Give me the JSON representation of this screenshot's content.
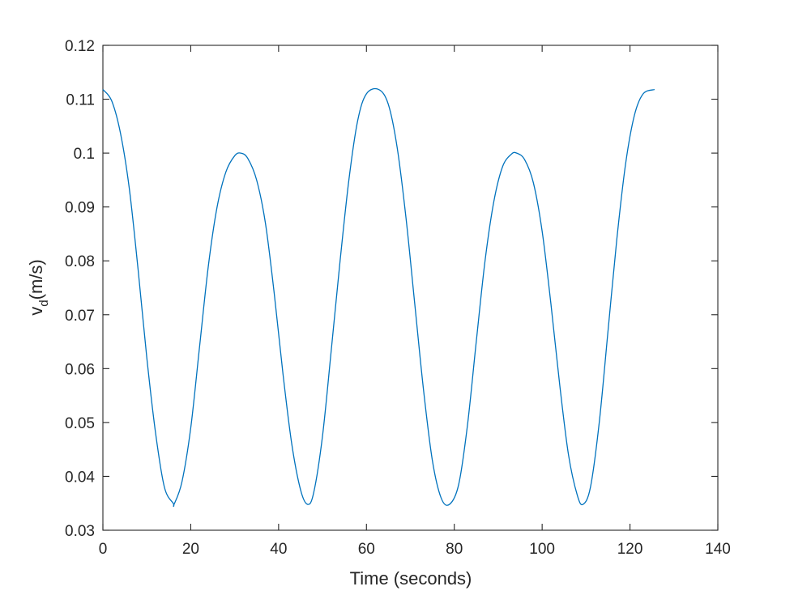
{
  "chart_data": {
    "type": "line",
    "title": "",
    "xlabel": "Time (seconds)",
    "ylabel_main": "v",
    "ylabel_sub": "d",
    "ylabel_unit": "(m/s)",
    "xlim": [
      0,
      140
    ],
    "ylim": [
      0.03,
      0.12
    ],
    "xticks": [
      0,
      20,
      40,
      60,
      80,
      100,
      120,
      140
    ],
    "xtick_labels": [
      "0",
      "20",
      "40",
      "60",
      "80",
      "100",
      "120",
      "140"
    ],
    "yticks": [
      0.03,
      0.04,
      0.05,
      0.06,
      0.07,
      0.08,
      0.09,
      0.1,
      0.11,
      0.12
    ],
    "ytick_labels": [
      "0.03",
      "0.04",
      "0.05",
      "0.06",
      "0.07",
      "0.08",
      "0.09",
      "0.1",
      "0.11",
      "0.12"
    ],
    "grid": false,
    "legend": "none",
    "line_color": "#0072BD",
    "series": [
      {
        "x": [
          0,
          2,
          4,
          6,
          8,
          10,
          12,
          14,
          16,
          16.2,
          18,
          20,
          22,
          24,
          26,
          28,
          30,
          31.4,
          33,
          35,
          37,
          39,
          41,
          43,
          45,
          46.6,
          48,
          50,
          52,
          54,
          56,
          58,
          60,
          62.8,
          65,
          67,
          69,
          71,
          73,
          75,
          77,
          78.9,
          81,
          83,
          85,
          87,
          89,
          91,
          93,
          94.2,
          96,
          98,
          100,
          102,
          104,
          106,
          108,
          109.3,
          111,
          113,
          115,
          117,
          119,
          121,
          123,
          125.6
        ],
        "y": [
          0.1118,
          0.1097,
          0.1037,
          0.0935,
          0.0785,
          0.062,
          0.048,
          0.038,
          0.035,
          0.0348,
          0.039,
          0.049,
          0.064,
          0.079,
          0.09,
          0.0965,
          0.0995,
          0.1,
          0.099,
          0.095,
          0.087,
          0.074,
          0.059,
          0.046,
          0.0375,
          0.0348,
          0.037,
          0.0475,
          0.0635,
          0.08,
          0.095,
          0.106,
          0.111,
          0.1118,
          0.109,
          0.101,
          0.088,
          0.072,
          0.056,
          0.043,
          0.036,
          0.0348,
          0.0385,
          0.0495,
          0.065,
          0.08,
          0.091,
          0.0975,
          0.0998,
          0.1,
          0.0988,
          0.0945,
          0.0855,
          0.072,
          0.057,
          0.044,
          0.0365,
          0.0348,
          0.038,
          0.05,
          0.067,
          0.084,
          0.098,
          0.107,
          0.111,
          0.1118
        ]
      }
    ]
  }
}
